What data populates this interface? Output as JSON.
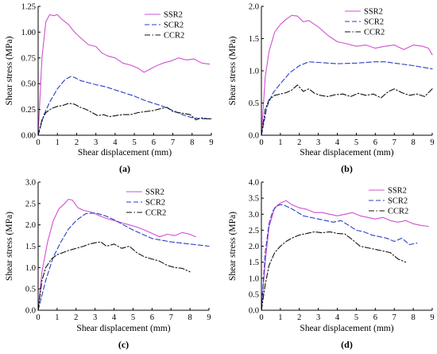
{
  "colors": {
    "SSR2": "#d24fd3",
    "SCR2": "#2b3fbf",
    "CCR2": "#111111"
  },
  "line_styles": {
    "SSR2": "solid",
    "SCR2": "dashed",
    "CCR2": "dashdot"
  },
  "chart_data": [
    {
      "panel": "(a)",
      "type": "line",
      "xlabel": "Shear displacement (mm)",
      "ylabel": "Shear stress (MPa)",
      "xlim": [
        0,
        9
      ],
      "ylim": [
        0,
        1.25
      ],
      "xticks": [
        0,
        1,
        2,
        3,
        4,
        5,
        6,
        7,
        8,
        9
      ],
      "yticks": [
        "0.00",
        "0.25",
        "0.50",
        "0.75",
        "1.00",
        "1.25"
      ],
      "legend": [
        "SSR2",
        "SCR2",
        "CCR2"
      ],
      "series": [
        {
          "name": "SSR2",
          "x": [
            0,
            0.2,
            0.4,
            0.6,
            0.8,
            1.0,
            1.2,
            1.4,
            1.6,
            1.8,
            2.0,
            2.3,
            2.6,
            3.0,
            3.3,
            3.6,
            4.0,
            4.4,
            4.8,
            5.2,
            5.5,
            5.8,
            6.1,
            6.5,
            6.9,
            7.3,
            7.7,
            8.1,
            8.5,
            8.9
          ],
          "y": [
            0,
            0.75,
            1.1,
            1.17,
            1.16,
            1.17,
            1.13,
            1.1,
            1.07,
            1.02,
            0.98,
            0.93,
            0.88,
            0.86,
            0.8,
            0.77,
            0.75,
            0.7,
            0.68,
            0.65,
            0.61,
            0.64,
            0.67,
            0.7,
            0.72,
            0.75,
            0.73,
            0.74,
            0.7,
            0.69
          ]
        },
        {
          "name": "SCR2",
          "x": [
            0,
            0.3,
            0.6,
            1.0,
            1.4,
            1.7,
            1.9,
            2.2,
            2.6,
            3.0,
            3.5,
            4.0,
            4.5,
            5.0,
            5.5,
            6.0,
            6.5,
            7.0,
            7.5,
            8.0,
            8.5,
            9.0
          ],
          "y": [
            0,
            0.2,
            0.32,
            0.45,
            0.54,
            0.57,
            0.56,
            0.53,
            0.51,
            0.49,
            0.47,
            0.44,
            0.41,
            0.38,
            0.34,
            0.31,
            0.28,
            0.24,
            0.2,
            0.17,
            0.16,
            0.16
          ]
        },
        {
          "name": "CCR2",
          "x": [
            0,
            0.2,
            0.4,
            0.7,
            1.0,
            1.3,
            1.6,
            1.9,
            2.2,
            2.5,
            2.8,
            3.1,
            3.4,
            3.7,
            4.0,
            4.4,
            4.8,
            5.2,
            5.6,
            6.0,
            6.4,
            6.7,
            7.0,
            7.3,
            7.6,
            7.9,
            8.2,
            8.5,
            8.8,
            9.0
          ],
          "y": [
            0,
            0.15,
            0.22,
            0.26,
            0.28,
            0.29,
            0.31,
            0.3,
            0.27,
            0.25,
            0.22,
            0.19,
            0.2,
            0.18,
            0.19,
            0.2,
            0.2,
            0.22,
            0.23,
            0.24,
            0.26,
            0.27,
            0.23,
            0.22,
            0.21,
            0.2,
            0.15,
            0.17,
            0.16,
            0.16
          ]
        }
      ]
    },
    {
      "panel": "(b)",
      "type": "line",
      "xlabel": "Shear displacement (mm)",
      "ylabel": "Shear stress (MPa)",
      "xlim": [
        0,
        9
      ],
      "ylim": [
        0,
        2.0
      ],
      "xticks": [
        0,
        1,
        2,
        3,
        4,
        5,
        6,
        7,
        8,
        9
      ],
      "yticks": [
        "0.0",
        "0.5",
        "1.0",
        "1.5",
        "2.0"
      ],
      "legend": [
        "SSR2",
        "SCR2",
        "CCR2"
      ],
      "series": [
        {
          "name": "SSR2",
          "x": [
            0,
            0.2,
            0.4,
            0.7,
            1.0,
            1.3,
            1.6,
            1.9,
            2.2,
            2.5,
            3.0,
            3.5,
            4.0,
            4.5,
            5.0,
            5.5,
            6.0,
            6.5,
            7.0,
            7.5,
            8.0,
            8.5,
            8.8,
            9.0
          ],
          "y": [
            0,
            0.9,
            1.3,
            1.6,
            1.72,
            1.8,
            1.86,
            1.85,
            1.76,
            1.78,
            1.68,
            1.55,
            1.45,
            1.42,
            1.38,
            1.4,
            1.35,
            1.38,
            1.4,
            1.33,
            1.4,
            1.38,
            1.35,
            1.25
          ]
        },
        {
          "name": "SCR2",
          "x": [
            0,
            0.3,
            0.6,
            1.0,
            1.5,
            2.0,
            2.5,
            3.0,
            4.0,
            5.0,
            6.0,
            6.5,
            7.0,
            8.0,
            9.0
          ],
          "y": [
            0,
            0.45,
            0.65,
            0.8,
            0.97,
            1.08,
            1.14,
            1.13,
            1.11,
            1.12,
            1.14,
            1.14,
            1.12,
            1.08,
            1.03
          ]
        },
        {
          "name": "CCR2",
          "x": [
            0,
            0.2,
            0.4,
            0.7,
            1.0,
            1.3,
            1.6,
            1.9,
            2.2,
            2.5,
            2.8,
            3.1,
            3.5,
            3.9,
            4.3,
            4.7,
            5.1,
            5.5,
            5.9,
            6.3,
            6.7,
            7.0,
            7.4,
            7.8,
            8.2,
            8.6,
            9.0
          ],
          "y": [
            0,
            0.4,
            0.55,
            0.62,
            0.64,
            0.66,
            0.7,
            0.78,
            0.68,
            0.72,
            0.65,
            0.62,
            0.6,
            0.63,
            0.64,
            0.6,
            0.65,
            0.62,
            0.64,
            0.58,
            0.68,
            0.72,
            0.66,
            0.62,
            0.64,
            0.6,
            0.72
          ]
        }
      ]
    },
    {
      "panel": "(c)",
      "type": "line",
      "xlabel": "Shear displacement (mm)",
      "ylabel": "Shear stress (MPa)",
      "xlim": [
        0,
        9
      ],
      "ylim": [
        0,
        3.0
      ],
      "xticks": [
        0,
        1,
        2,
        3,
        4,
        5,
        6,
        7,
        8,
        9
      ],
      "yticks": [
        "0.0",
        "0.5",
        "1.0",
        "1.5",
        "2.0",
        "2.5",
        "3.0"
      ],
      "legend": [
        "SSR2",
        "SCR2",
        "CCR2"
      ],
      "series": [
        {
          "name": "SSR2",
          "x": [
            0,
            0.2,
            0.5,
            0.8,
            1.1,
            1.4,
            1.6,
            1.8,
            2.1,
            2.4,
            2.8,
            3.2,
            3.6,
            4.0,
            4.4,
            4.8,
            5.2,
            5.6,
            6.0,
            6.4,
            6.8,
            7.2,
            7.6,
            8.0,
            8.3
          ],
          "y": [
            0,
            0.9,
            1.6,
            2.1,
            2.38,
            2.5,
            2.6,
            2.58,
            2.4,
            2.34,
            2.3,
            2.22,
            2.15,
            2.1,
            2.05,
            2.0,
            1.95,
            1.88,
            1.8,
            1.72,
            1.78,
            1.75,
            1.82,
            1.78,
            1.72
          ]
        },
        {
          "name": "SCR2",
          "x": [
            0,
            0.4,
            0.8,
            1.2,
            1.6,
            2.0,
            2.5,
            3.0,
            3.5,
            4.0,
            4.5,
            5.0,
            5.5,
            6.0,
            7.0,
            8.0,
            9.0
          ],
          "y": [
            0,
            0.7,
            1.25,
            1.6,
            1.9,
            2.1,
            2.26,
            2.28,
            2.22,
            2.12,
            2.0,
            1.88,
            1.78,
            1.68,
            1.6,
            1.55,
            1.5
          ]
        },
        {
          "name": "CCR2",
          "x": [
            0,
            0.2,
            0.4,
            0.7,
            1.0,
            1.3,
            1.6,
            2.0,
            2.4,
            2.7,
            3.0,
            3.3,
            3.6,
            4.0,
            4.4,
            4.8,
            5.2,
            5.6,
            6.0,
            6.4,
            6.8,
            7.2,
            7.6,
            8.0
          ],
          "y": [
            0,
            0.7,
            1.0,
            1.2,
            1.3,
            1.35,
            1.4,
            1.45,
            1.5,
            1.55,
            1.58,
            1.6,
            1.5,
            1.55,
            1.45,
            1.5,
            1.35,
            1.25,
            1.2,
            1.15,
            1.05,
            1.0,
            0.98,
            0.9
          ]
        }
      ]
    },
    {
      "panel": "(d)",
      "type": "line",
      "xlabel": "Shear displacement (mm)",
      "ylabel": "Shear stress (MPa)",
      "xlim": [
        0,
        9
      ],
      "ylim": [
        0,
        4.0
      ],
      "xticks": [
        0,
        1,
        2,
        3,
        4,
        5,
        6,
        7,
        8,
        9
      ],
      "yticks": [
        "0.0",
        "0.5",
        "1.0",
        "1.5",
        "2.0",
        "2.5",
        "3.0",
        "3.5",
        "4.0"
      ],
      "legend": [
        "SSR2",
        "SCR2",
        "CCR2"
      ],
      "series": [
        {
          "name": "SSR2",
          "x": [
            0,
            0.2,
            0.4,
            0.7,
            1.0,
            1.3,
            1.6,
            2.0,
            2.4,
            2.8,
            3.2,
            3.6,
            4.0,
            4.4,
            4.8,
            5.2,
            5.6,
            6.0,
            6.4,
            6.8,
            7.2,
            7.6,
            8.0,
            8.4,
            8.8
          ],
          "y": [
            0,
            1.5,
            2.6,
            3.2,
            3.35,
            3.42,
            3.3,
            3.2,
            3.15,
            3.05,
            3.05,
            3.0,
            2.95,
            3.0,
            3.05,
            2.95,
            2.9,
            2.85,
            2.9,
            2.8,
            2.75,
            2.8,
            2.7,
            2.65,
            2.62
          ]
        },
        {
          "name": "SCR2",
          "x": [
            0,
            0.2,
            0.4,
            0.6,
            0.8,
            1.0,
            1.2,
            1.5,
            1.8,
            2.2,
            2.6,
            3.0,
            3.4,
            3.8,
            4.2,
            4.6,
            5.0,
            5.4,
            5.8,
            6.2,
            6.6,
            7.0,
            7.4,
            7.8,
            8.2
          ],
          "y": [
            0,
            1.8,
            2.7,
            3.1,
            3.25,
            3.3,
            3.28,
            3.2,
            3.1,
            2.95,
            2.9,
            2.85,
            2.8,
            2.75,
            2.8,
            2.65,
            2.5,
            2.45,
            2.35,
            2.3,
            2.25,
            2.15,
            2.25,
            2.05,
            2.1
          ]
        },
        {
          "name": "CCR2",
          "x": [
            0,
            0.2,
            0.4,
            0.7,
            1.0,
            1.3,
            1.6,
            2.0,
            2.4,
            2.8,
            3.2,
            3.6,
            4.0,
            4.4,
            4.8,
            5.2,
            5.6,
            6.0,
            6.4,
            6.8,
            7.2,
            7.6
          ],
          "y": [
            0,
            0.8,
            1.4,
            1.8,
            2.0,
            2.15,
            2.25,
            2.35,
            2.4,
            2.45,
            2.42,
            2.45,
            2.4,
            2.38,
            2.2,
            2.0,
            1.95,
            1.9,
            1.85,
            1.8,
            1.6,
            1.5
          ]
        }
      ]
    }
  ]
}
